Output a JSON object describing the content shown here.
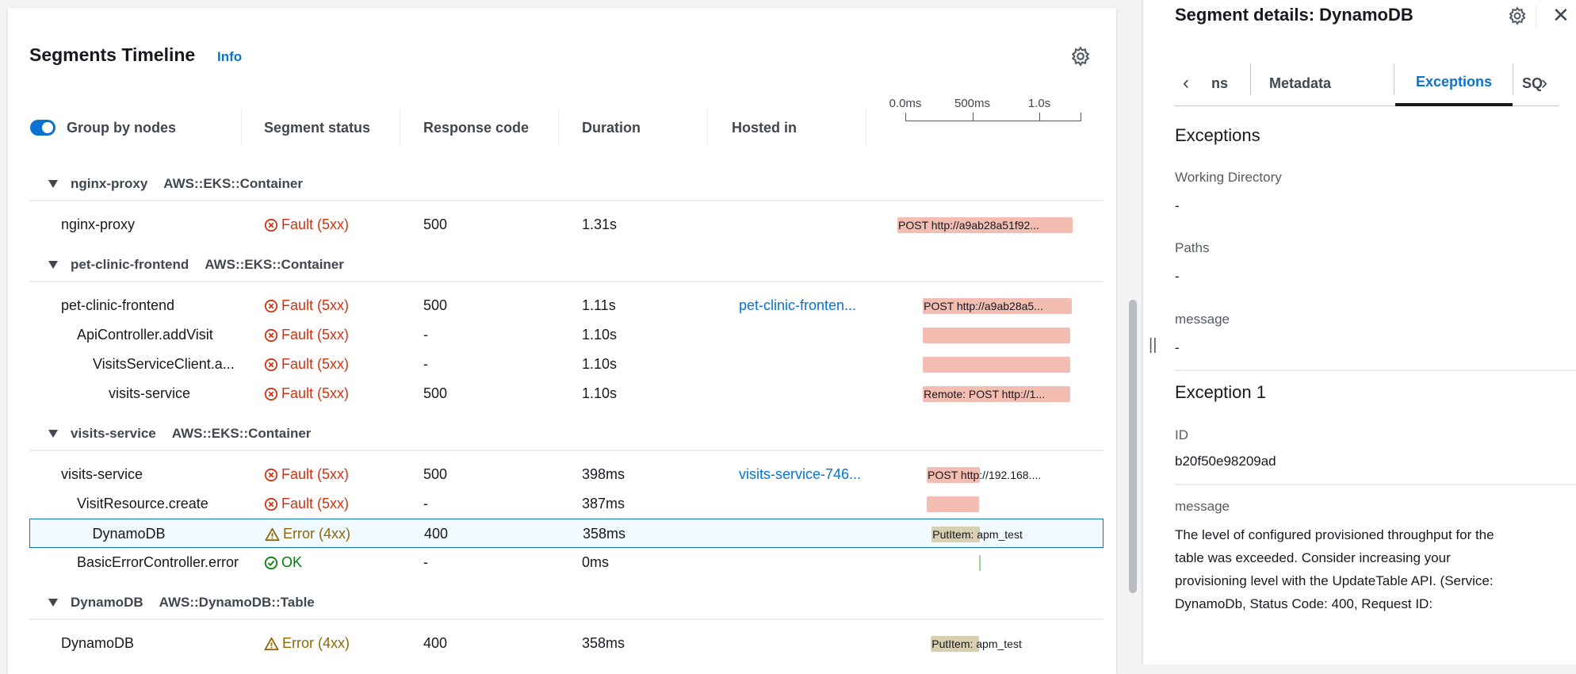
{
  "timeline": {
    "title": "Segments Timeline",
    "info_label": "Info",
    "group_by_label": "Group by nodes",
    "group_by_enabled": true,
    "columns": [
      "Segment status",
      "Response code",
      "Duration",
      "Hosted in"
    ],
    "axis": {
      "ticks": [
        "0.0ms",
        "500ms",
        "1.0s"
      ],
      "tick_values_s": [
        0,
        0.5,
        1.0
      ],
      "max_s": 1.31
    },
    "groups": [
      {
        "name": "nginx-proxy",
        "type": "AWS::EKS::Container",
        "rows": [
          {
            "name": "nginx-proxy",
            "level": 0,
            "status": "Fault (5xx)",
            "kind": "fault",
            "code": "500",
            "duration": "1.31s",
            "hosted": "",
            "start_s": 0,
            "dur_s": 1.31,
            "bar_label": "POST http://a9ab28a51f92..."
          }
        ]
      },
      {
        "name": "pet-clinic-frontend",
        "type": "AWS::EKS::Container",
        "rows": [
          {
            "name": "pet-clinic-frontend",
            "level": 0,
            "status": "Fault (5xx)",
            "kind": "fault",
            "code": "500",
            "duration": "1.11s",
            "hosted": "pet-clinic-fronten...",
            "start_s": 0.19,
            "dur_s": 1.11,
            "bar_label": "POST http://a9ab28a5..."
          },
          {
            "name": "ApiController.addVisit",
            "level": 1,
            "status": "Fault (5xx)",
            "kind": "fault",
            "code": "-",
            "duration": "1.10s",
            "hosted": "",
            "start_s": 0.19,
            "dur_s": 1.1,
            "bar_label": ""
          },
          {
            "name": "VisitsServiceClient.a...",
            "level": 2,
            "status": "Fault (5xx)",
            "kind": "fault",
            "code": "-",
            "duration": "1.10s",
            "hosted": "",
            "start_s": 0.19,
            "dur_s": 1.1,
            "bar_label": ""
          },
          {
            "name": "visits-service",
            "level": 3,
            "status": "Fault (5xx)",
            "kind": "fault",
            "code": "500",
            "duration": "1.10s",
            "hosted": "",
            "start_s": 0.19,
            "dur_s": 1.1,
            "bar_label": "Remote: POST http://1..."
          }
        ]
      },
      {
        "name": "visits-service",
        "type": "AWS::EKS::Container",
        "rows": [
          {
            "name": "visits-service",
            "level": 0,
            "status": "Fault (5xx)",
            "kind": "fault",
            "code": "500",
            "duration": "398ms",
            "hosted": "visits-service-746...",
            "start_s": 0.22,
            "dur_s": 0.398,
            "bar_label": "POST http://192.168...."
          },
          {
            "name": "VisitResource.create",
            "level": 1,
            "status": "Fault (5xx)",
            "kind": "fault",
            "code": "-",
            "duration": "387ms",
            "hosted": "",
            "start_s": 0.22,
            "dur_s": 0.387,
            "bar_label": ""
          },
          {
            "name": "DynamoDB",
            "level": 2,
            "status": "Error (4xx)",
            "kind": "error",
            "code": "400",
            "duration": "358ms",
            "hosted": "",
            "start_s": 0.25,
            "dur_s": 0.358,
            "bar_label": "PutItem: apm_test",
            "selected": true
          },
          {
            "name": "BasicErrorController.error",
            "level": 1,
            "status": "OK",
            "kind": "ok",
            "code": "-",
            "duration": "0ms",
            "hosted": "",
            "start_s": 0.61,
            "dur_s": 0,
            "bar_label": ""
          }
        ]
      },
      {
        "name": "DynamoDB",
        "type": "AWS::DynamoDB::Table",
        "rows": [
          {
            "name": "DynamoDB",
            "level": 0,
            "status": "Error (4xx)",
            "kind": "error",
            "code": "400",
            "duration": "358ms",
            "hosted": "",
            "start_s": 0.25,
            "dur_s": 0.358,
            "bar_label": "PutItem: apm_test"
          }
        ]
      }
    ]
  },
  "details": {
    "title": "Segment details: DynamoDB",
    "tabs": [
      "ns",
      "Metadata",
      "Exceptions",
      "SQ"
    ],
    "active_tab": "Exceptions",
    "section_title": "Exceptions",
    "working_directory_label": "Working Directory",
    "working_directory": "-",
    "paths_label": "Paths",
    "paths": "-",
    "message_label": "message",
    "message": "-",
    "exception_title": "Exception 1",
    "id_label": "ID",
    "id": "b20f50e98209ad",
    "exception_message_label": "message",
    "exception_message_lines": [
      "The level of configured provisioned throughput for the",
      "table was exceeded. Consider increasing your",
      "provisioning level with the UpdateTable API. (Service:",
      "DynamoDb, Status Code: 400, Request ID:"
    ]
  },
  "colors": {
    "accent": "#0972d3",
    "fault": "#d13212",
    "error": "#8d6605",
    "ok": "#037f0c",
    "fault_bar": "#f4bdb2",
    "error_bar": "#d7cfb0"
  }
}
